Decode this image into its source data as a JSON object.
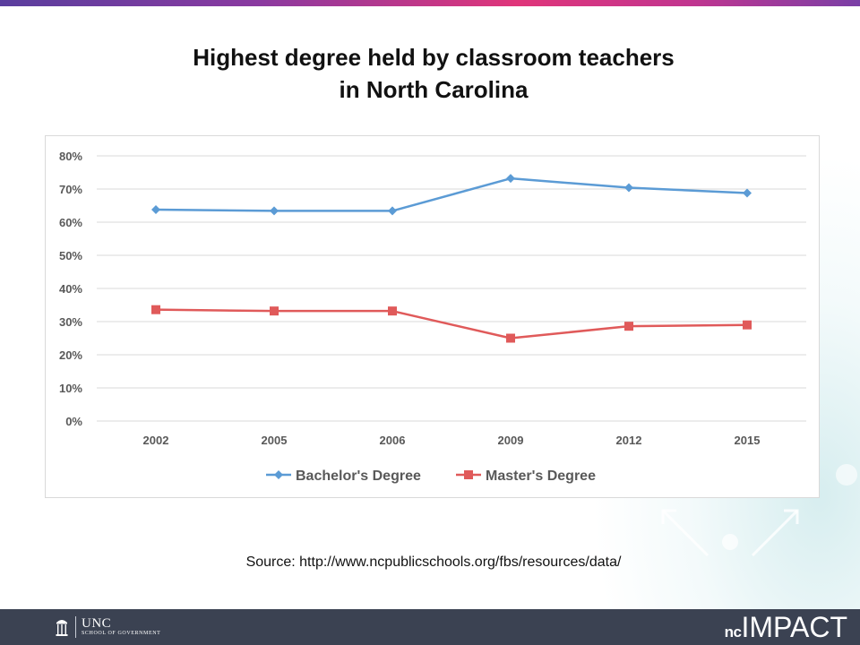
{
  "title_line1": "Highest degree held by classroom teachers",
  "title_line2": "in North Carolina",
  "source": "Source: http://www.ncpublicschools.org/fbs/resources/data/",
  "footer": {
    "org_name": "UNC",
    "org_sub": "SCHOOL OF GOVERNMENT",
    "brand_nc": "nc",
    "brand_impact": "IMPACT"
  },
  "colors": {
    "bachelors": "#5b9bd5",
    "masters": "#e05a5a",
    "footer_bg": "#3b4252",
    "grid": "#d9d9d9"
  },
  "chart_data": {
    "type": "line",
    "title": "Highest degree held by classroom teachers in North Carolina",
    "categories": [
      "2002",
      "2005",
      "2006",
      "2009",
      "2012",
      "2015"
    ],
    "ylim": [
      0,
      80
    ],
    "yticks": [
      "0%",
      "10%",
      "20%",
      "30%",
      "40%",
      "50%",
      "60%",
      "70%",
      "80%"
    ],
    "grid": true,
    "legend": "bottom",
    "series": [
      {
        "name": "Bachelor's Degree",
        "marker": "diamond",
        "color": "#5b9bd5",
        "values": [
          63.8,
          63.4,
          63.4,
          73.2,
          70.4,
          68.8
        ]
      },
      {
        "name": "Master's Degree",
        "marker": "square",
        "color": "#e05a5a",
        "values": [
          33.6,
          33.2,
          33.2,
          25.0,
          28.6,
          29.0
        ]
      }
    ]
  }
}
